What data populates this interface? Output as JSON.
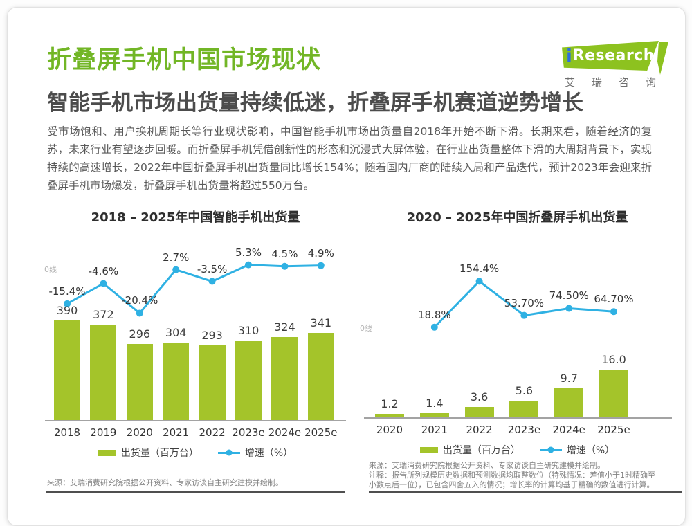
{
  "page": {
    "title": "折叠屏手机中国市场现状",
    "subtitle": "智能手机市场出货量持续低迷，折叠屏手机赛道逆势增长",
    "body": "受市场饱和、用户换机周期长等行业现状影响，中国智能手机市场出货量自2018年开始不断下滑。长期来看，随着经济的复苏，未来行业有望逐步回暖。而折叠屏手机凭借创新性的形态和沉浸式大屏体验，在行业出货量整体下滑的大周期背景下，实现持续的高速增长，2022年中国折叠屏手机出货量同比增长154%；随着国内厂商的陆续入局和产品迭代，预计2023年会迎来折叠屏手机市场爆发，折叠屏手机出货量将超过550万台。"
  },
  "logo": {
    "brand_i": "i",
    "brand_rest": "Research",
    "subtext": "艾瑞咨询"
  },
  "colors": {
    "title_green": "#72b626",
    "bar_green": "#a4c42a",
    "line_blue": "#2fb1e3",
    "logo_green": "#8dc21f"
  },
  "legend": {
    "bars": "出货量（百万台）",
    "line": "增速（%）"
  },
  "chart_data": [
    {
      "type": "bar+line",
      "title": "2018 – 2025年中国智能手机出货量",
      "categories": [
        "2018",
        "2019",
        "2020",
        "2021",
        "2022",
        "2023e",
        "2024e",
        "2025e"
      ],
      "series": [
        {
          "name": "出货量（百万台）",
          "type": "bar",
          "unit": "百万台",
          "values": [
            390,
            372,
            296,
            304,
            293,
            310,
            324,
            341
          ],
          "labels": [
            "390",
            "372",
            "296",
            "304",
            "293",
            "310",
            "324",
            "341"
          ]
        },
        {
          "name": "增速（%）",
          "type": "line",
          "unit": "%",
          "values": [
            -15.4,
            -4.6,
            -20.4,
            2.7,
            -3.5,
            5.3,
            4.5,
            4.9
          ],
          "labels": [
            "-15.4%",
            "-4.6%",
            "-20.4%",
            "2.7%",
            "-3.5%",
            "5.3%",
            "4.5%",
            "4.9%"
          ]
        }
      ],
      "zero_line_label": "0线",
      "legend_position": "bottom",
      "grid": false
    },
    {
      "type": "bar+line",
      "title": "2020 – 2025年中国折叠屏手机出货量",
      "categories": [
        "2020",
        "2021",
        "2022",
        "2023e",
        "2024e",
        "2025e"
      ],
      "series": [
        {
          "name": "出货量（百万台）",
          "type": "bar",
          "unit": "百万台",
          "values": [
            1.2,
            1.4,
            3.6,
            5.6,
            9.7,
            16.0
          ],
          "labels": [
            "1.2",
            "1.4",
            "3.6",
            "5.6",
            "9.7",
            "16.0"
          ]
        },
        {
          "name": "增速（%）",
          "type": "line",
          "unit": "%",
          "values": [
            null,
            18.8,
            154.4,
            53.7,
            74.5,
            64.7
          ],
          "labels": [
            "",
            "18.8%",
            "154.4%",
            "53.70%",
            "74.50%",
            "64.70%"
          ]
        }
      ],
      "zero_line_label": "0线",
      "legend_position": "bottom",
      "grid": false
    }
  ],
  "notes": {
    "left": "来源：艾瑞消费研究院根据公开资料、专家访谈自主研究建模并绘制。",
    "right1": "来源：艾瑞消费研究院根据公开资料、专家访谈自主研究建模并绘制。",
    "right2": "注释：报告所列规模历史数据和预测数据均取整数位（特殊情况：差值小于1时精确至",
    "right3": "小数点后一位），已包含四舍五入的情况；增长率的计算均基于精确的数值进行计算。"
  }
}
